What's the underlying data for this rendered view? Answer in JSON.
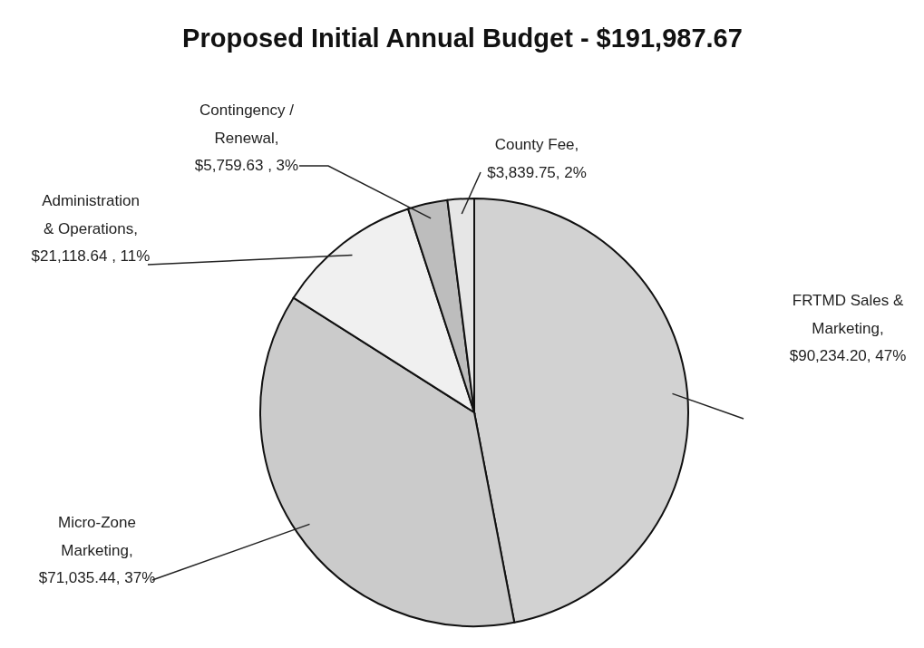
{
  "chart_data": {
    "type": "pie",
    "title": "Proposed Initial Annual Budget - $191,987.67",
    "categories": [
      "FRTMD Sales & Marketing",
      "Micro-Zone Marketing",
      "Administration & Operations",
      "Contingency / Renewal",
      "County Fee"
    ],
    "values": [
      90234.2,
      71035.44,
      21118.64,
      5759.63,
      3839.75
    ],
    "value_labels": [
      ",\n$90,234.20, 47%",
      ",\n$71,035.44, 37%",
      ",\n$21,118.64 , 11%",
      ",\n$5,759.63 , 3%",
      ",\n$3,839.75, 2%"
    ],
    "colors": [
      "#d2d2d2",
      "#cbcbcb",
      "#f0f0f0",
      "#bdbdbd",
      "#e6e6e6"
    ]
  }
}
